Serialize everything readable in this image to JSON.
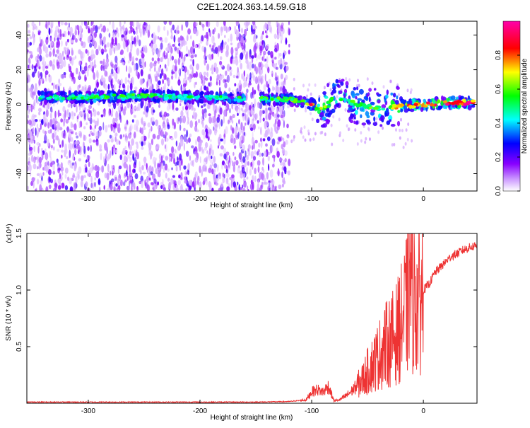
{
  "chart_data": [
    {
      "type": "heatmap",
      "title": "C2E1.2024.363.14.59.G18",
      "xlabel": "Height of straight line (km)",
      "ylabel": "Frequency (Hz)",
      "xlim": [
        -355,
        48
      ],
      "ylim": [
        -50,
        48
      ],
      "xticks": [
        "-300",
        "-200",
        "-100",
        "0"
      ],
      "yticks": [
        "-40",
        "-20",
        "0",
        "20",
        "40"
      ],
      "colorbar": {
        "label": "Normalized spectral amplitude",
        "range": [
          0,
          1
        ],
        "ticks": [
          "0.0",
          "0.2",
          "0.4",
          "0.6",
          "0.8"
        ],
        "colors": [
          "#ffffff",
          "#8800ff",
          "#0000ff",
          "#00ffff",
          "#00ff00",
          "#ffff00",
          "#ff0000",
          "#ff00aa"
        ]
      },
      "ridge": {
        "description_points_x": [
          -330,
          -300,
          -250,
          -200,
          -150,
          -120,
          -100,
          -90,
          -80,
          -60,
          -40,
          -20,
          0,
          20,
          48
        ],
        "frequency": [
          4,
          4,
          5,
          4,
          3,
          3,
          0,
          -3,
          5,
          0,
          -2,
          -1,
          0,
          1,
          1
        ],
        "amplitude": [
          0.5,
          0.55,
          0.55,
          0.5,
          0.55,
          0.6,
          0.85,
          0.65,
          0.6,
          0.55,
          0.6,
          0.8,
          0.9,
          0.9,
          0.95
        ]
      },
      "noise_extent_x": [
        -355,
        -120
      ]
    },
    {
      "type": "line",
      "xlabel": "Height of straight line (km)",
      "ylabel": "SNR (10 * v/v)",
      "exponent_label": "(x10⁴)",
      "xlim": [
        -355,
        48
      ],
      "ylim": [
        0,
        1.5
      ],
      "xticks": [
        "-300",
        "-200",
        "-100",
        "0"
      ],
      "yticks": [
        "0.5",
        "1.0",
        "1.5"
      ],
      "color": "#ee3333",
      "series": [
        {
          "x": [
            -355,
            -300,
            -250,
            -200,
            -150,
            -120,
            -105,
            -100,
            -95,
            -90,
            -85,
            -80,
            -75,
            -70,
            -65,
            -60,
            -55,
            -50,
            -45,
            -40,
            -35,
            -30,
            -25,
            -20,
            -15,
            -12,
            -10,
            -5,
            0,
            5,
            10,
            15,
            20,
            25,
            30,
            35,
            40,
            48
          ],
          "values": [
            0.01,
            0.01,
            0.01,
            0.01,
            0.01,
            0.015,
            0.03,
            0.1,
            0.12,
            0.1,
            0.15,
            0.02,
            0.03,
            0.06,
            0.1,
            0.15,
            0.2,
            0.28,
            0.35,
            0.42,
            0.5,
            0.55,
            0.6,
            0.7,
            0.85,
            1.2,
            0.95,
            0.9,
            1.0,
            1.05,
            1.15,
            1.2,
            1.25,
            1.3,
            1.32,
            1.35,
            1.37,
            1.4
          ]
        }
      ]
    }
  ]
}
